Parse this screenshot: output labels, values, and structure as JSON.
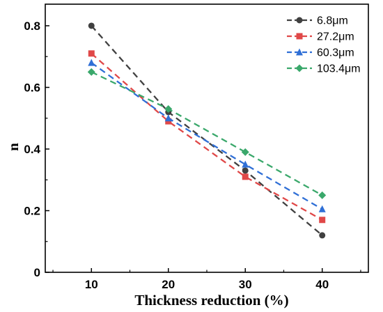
{
  "chart_data": {
    "type": "line",
    "xlabel": "Thickness reduction (%)",
    "ylabel": "n",
    "x": [
      10,
      20,
      30,
      40
    ],
    "xlim": [
      4,
      46
    ],
    "ylim": [
      0,
      0.87
    ],
    "xticks": [
      "10",
      "20",
      "30",
      "40"
    ],
    "yticks": [
      "0",
      "0.2",
      "0.4",
      "0.6",
      "0.8"
    ],
    "grid": false,
    "legend_position": "top-right",
    "series": [
      {
        "name": "6.8μm",
        "values": [
          0.8,
          0.52,
          0.33,
          0.12
        ],
        "color": "#404040",
        "marker": "circle"
      },
      {
        "name": "27.2μm",
        "values": [
          0.71,
          0.49,
          0.31,
          0.17
        ],
        "color": "#e04848",
        "marker": "square"
      },
      {
        "name": "60.3μm",
        "values": [
          0.68,
          0.5,
          0.35,
          0.205
        ],
        "color": "#2f6fd6",
        "marker": "triangle"
      },
      {
        "name": "103.4μm",
        "values": [
          0.65,
          0.53,
          0.39,
          0.25
        ],
        "color": "#3aa86b",
        "marker": "diamond"
      }
    ]
  }
}
